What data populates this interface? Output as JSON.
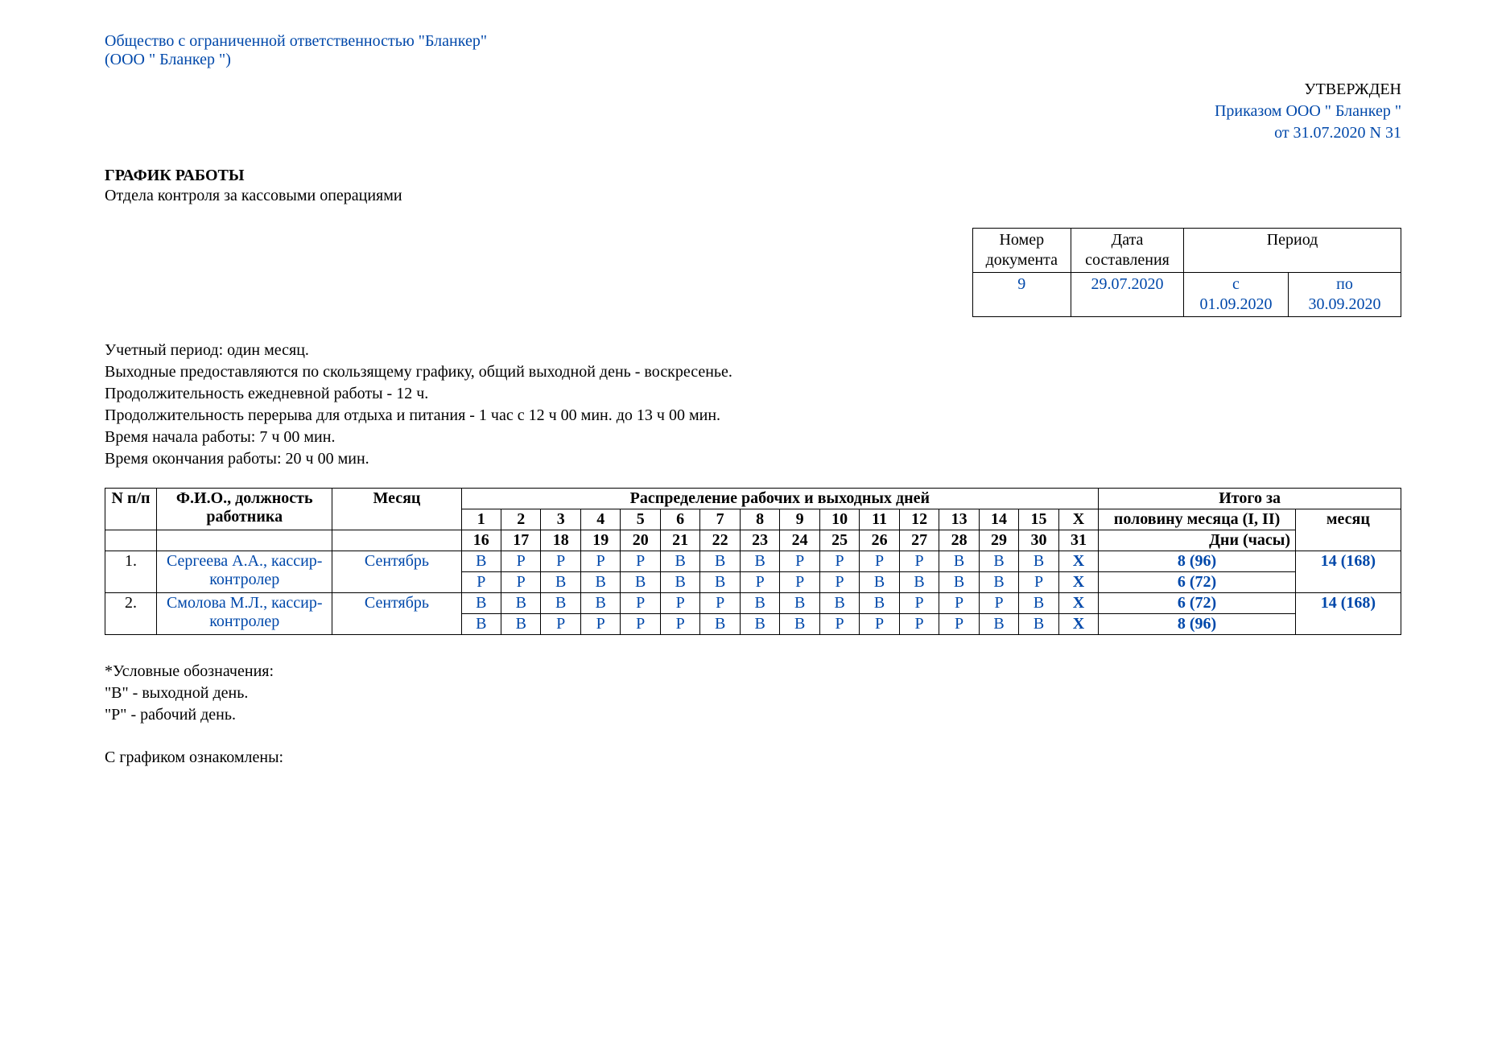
{
  "org": {
    "line1": "Общество с ограниченной ответственностью \"Бланкер\"",
    "line2": "(ООО \" Бланкер \")"
  },
  "approved": {
    "line1": "УТВЕРЖДЕН",
    "line2": "Приказом ООО \" Бланкер \"",
    "line3": "от 31.07.2020 N 31"
  },
  "title": "ГРАФИК РАБОТЫ",
  "subtitle": "Отдела контроля за кассовыми операциями",
  "meta": {
    "h_doc_no": "Номер документа",
    "h_date": "Дата составления",
    "h_period": "Период",
    "doc_no": "9",
    "date": "29.07.2020",
    "period_from": "с 01.09.2020",
    "period_to": "по 30.09.2020"
  },
  "notes": [
    "Учетный период: один месяц.",
    "Выходные предоставляются по скользящему графику, общий выходной день - воскресенье.",
    "Продолжительность ежедневной работы - 12 ч.",
    "Продолжительность перерыва для отдыха и питания - 1 час с 12 ч 00 мин. до 13 ч 00 мин.",
    "Время начала работы: 7 ч 00 мин.",
    "Время окончания работы: 20 ч 00 мин."
  ],
  "sched": {
    "head": {
      "n": "N п/п",
      "fio": "Ф.И.О., должность работника",
      "month": "Месяц",
      "dist": "Распределение рабочих и выходных дней",
      "itogo": "Итого за",
      "half": "половину месяца (I, II)",
      "month_total": "месяц",
      "dni": "Дни (часы)",
      "x": "X",
      "days_a": [
        "1",
        "2",
        "3",
        "4",
        "5",
        "6",
        "7",
        "8",
        "9",
        "10",
        "11",
        "12",
        "13",
        "14",
        "15"
      ],
      "days_b": [
        "16",
        "17",
        "18",
        "19",
        "20",
        "21",
        "22",
        "23",
        "24",
        "25",
        "26",
        "27",
        "28",
        "29",
        "30",
        "31"
      ]
    },
    "rows": [
      {
        "n": "1.",
        "fio": "Сергеева А.А., кассир-контролер",
        "month": "Сентябрь",
        "half1": [
          "В",
          "Р",
          "Р",
          "Р",
          "Р",
          "В",
          "В",
          "В",
          "Р",
          "Р",
          "Р",
          "Р",
          "В",
          "В",
          "В",
          "X"
        ],
        "half2": [
          "Р",
          "Р",
          "В",
          "В",
          "В",
          "В",
          "В",
          "Р",
          "Р",
          "Р",
          "В",
          "В",
          "В",
          "В",
          "Р",
          "X"
        ],
        "sum1": "8 (96)",
        "sum2": "6 (72)",
        "month_total": "14 (168)"
      },
      {
        "n": "2.",
        "fio": "Смолова М.Л., кассир-контролер",
        "month": "Сентябрь",
        "half1": [
          "В",
          "В",
          "В",
          "В",
          "Р",
          "Р",
          "Р",
          "В",
          "В",
          "В",
          "В",
          "Р",
          "Р",
          "Р",
          "В",
          "X"
        ],
        "half2": [
          "В",
          "В",
          "Р",
          "Р",
          "Р",
          "Р",
          "В",
          "В",
          "В",
          "Р",
          "Р",
          "Р",
          "Р",
          "В",
          "В",
          "X"
        ],
        "sum1": "6 (72)",
        "sum2": "8 (96)",
        "month_total": "14 (168)"
      }
    ]
  },
  "legend": {
    "title": "*Условные обозначения:",
    "b": "\"В\" - выходной день.",
    "r": "\"Р\" - рабочий день."
  },
  "ack": "С графиком ознакомлены:",
  "colors": {
    "blue": "#0048aa",
    "black": "#000000"
  }
}
